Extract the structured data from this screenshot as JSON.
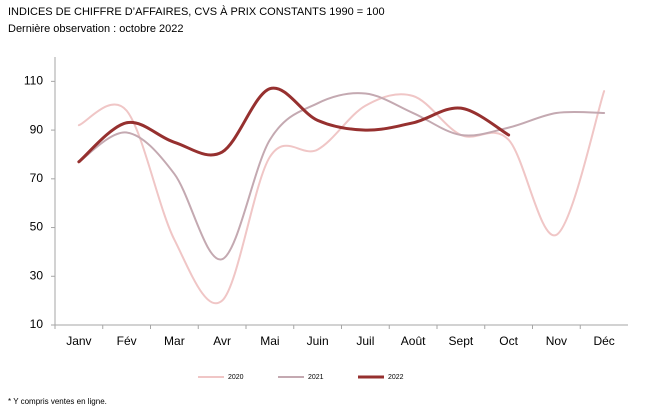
{
  "chart_data": {
    "type": "line",
    "title": "INDICES DE CHIFFRE D’AFFAIRES, CVS À PRIX CONSTANTS 1990 = 100",
    "subtitle": "Dernière observation : octobre 2022",
    "note": "* Y compris ventes en ligne.",
    "categories": [
      "Janv",
      "Fév",
      "Mar",
      "Avr",
      "Mai",
      "Juin",
      "Juil",
      "Août",
      "Sept",
      "Oct",
      "Nov",
      "Déc"
    ],
    "series": [
      {
        "name": "2020",
        "color": "#f0c6c6",
        "values": [
          92,
          98,
          45,
          20,
          79,
          82,
          100,
          104,
          88,
          86,
          47,
          106
        ]
      },
      {
        "name": "2021",
        "color": "#c4a9b1",
        "values": [
          77,
          89,
          72,
          37,
          86,
          101,
          105,
          97,
          88,
          91,
          97,
          97
        ]
      },
      {
        "name": "2022",
        "color": "#96302f",
        "values": [
          77,
          93,
          85,
          81,
          107,
          94,
          90,
          93,
          99,
          88,
          null,
          null
        ]
      }
    ],
    "ylim": [
      10,
      120
    ],
    "yticks": [
      10,
      30,
      50,
      70,
      90,
      110
    ],
    "grid": false,
    "legend": "bottom"
  }
}
